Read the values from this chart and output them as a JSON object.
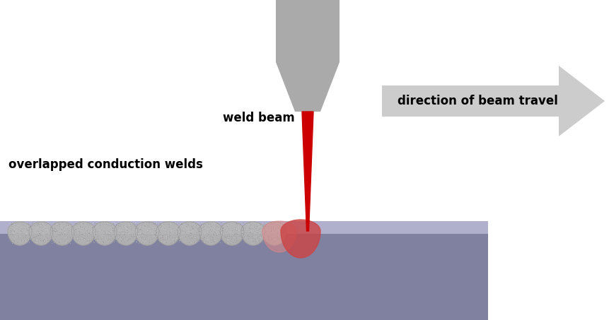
{
  "bg_color": "#ffffff",
  "plate_color": "#8080a0",
  "plate_top_color": "#b0b0cc",
  "text_color": "#000000",
  "beam_color": "#cc0000",
  "nozzle_color": "#aaaaaa",
  "bead_color": "#aaaaaa",
  "bead_fill": "#b0b0b0",
  "hot_colors": [
    "#cc8888",
    "#cc3333"
  ],
  "arrow_color": "#cccccc",
  "label_weld_beam": "weld beam",
  "label_direction": "direction of beam travel",
  "label_overlap": "overlapped conduction welds",
  "fontsize_main": 12
}
